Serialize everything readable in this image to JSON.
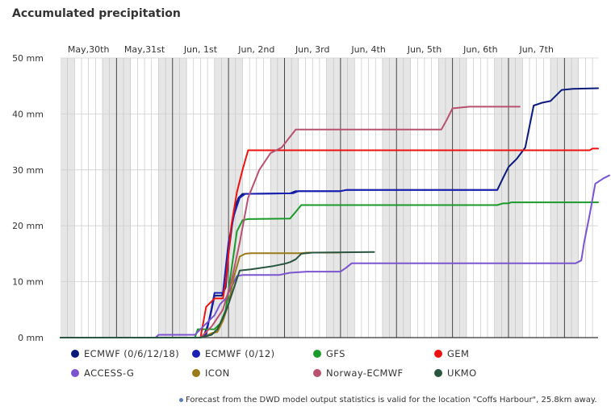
{
  "chart_data": {
    "type": "line",
    "title": "Accumulated precipitation",
    "ylabel": "",
    "xlabel": "",
    "y_unit": "mm",
    "ylim": [
      0,
      50
    ],
    "y_ticks": [
      0,
      10,
      20,
      30,
      40,
      50
    ],
    "y_tick_labels": [
      "0 mm",
      "10 mm",
      "20 mm",
      "30 mm",
      "40 mm",
      "50 mm"
    ],
    "x_unit": "days since May 29 00:00",
    "xlim": [
      0,
      9.6
    ],
    "day_labels": [
      {
        "t": 1,
        "label": "May,30th"
      },
      {
        "t": 2,
        "label": "May,31st"
      },
      {
        "t": 3,
        "label": "Jun, 1st"
      },
      {
        "t": 4,
        "label": "Jun, 2nd"
      },
      {
        "t": 5,
        "label": "Jun, 3rd"
      },
      {
        "t": 6,
        "label": "Jun, 4th"
      },
      {
        "t": 7,
        "label": "Jun, 5th"
      },
      {
        "t": 8,
        "label": "Jun, 6th"
      },
      {
        "t": 9,
        "label": "Jun, 7th"
      }
    ],
    "grid": true,
    "legend_placement": "bottom",
    "series": [
      {
        "name": "ECMWF (0/6/12/18)",
        "color": "#0a1a7a",
        "points": [
          [
            0,
            0
          ],
          [
            2.5,
            0
          ],
          [
            2.55,
            0.1
          ],
          [
            2.62,
            2
          ],
          [
            2.68,
            4
          ],
          [
            2.75,
            7.5
          ],
          [
            2.88,
            7.5
          ],
          [
            2.95,
            9
          ],
          [
            3.0,
            15
          ],
          [
            3.05,
            19
          ],
          [
            3.1,
            23
          ],
          [
            3.18,
            25
          ],
          [
            3.25,
            25.7
          ],
          [
            4.1,
            25.8
          ],
          [
            4.2,
            26.2
          ],
          [
            5.0,
            26.2
          ],
          [
            5.1,
            26.4
          ],
          [
            7.8,
            26.4
          ],
          [
            7.9,
            28.5
          ],
          [
            8.0,
            30.5
          ],
          [
            8.15,
            32
          ],
          [
            8.3,
            34
          ],
          [
            8.45,
            41.5
          ],
          [
            8.6,
            42
          ],
          [
            8.75,
            42.3
          ],
          [
            8.95,
            44.3
          ],
          [
            9.15,
            44.5
          ],
          [
            9.6,
            44.6
          ]
        ]
      },
      {
        "name": "ECMWF (0/12)",
        "color": "#1a21b0",
        "points": [
          [
            0,
            0
          ],
          [
            2.5,
            0
          ],
          [
            2.6,
            0.5
          ],
          [
            2.75,
            8
          ],
          [
            2.9,
            8
          ],
          [
            3.0,
            17
          ],
          [
            3.1,
            22
          ],
          [
            3.2,
            25
          ],
          [
            3.3,
            25.7
          ],
          [
            4.15,
            25.8
          ],
          [
            4.25,
            26.2
          ],
          [
            5.0,
            26.2
          ],
          [
            5.1,
            26.4
          ],
          [
            7.8,
            26.4
          ]
        ]
      },
      {
        "name": "GFS",
        "color": "#1a9a2a",
        "points": [
          [
            0,
            0
          ],
          [
            2.4,
            0
          ],
          [
            2.45,
            1.5
          ],
          [
            2.75,
            1.5
          ],
          [
            2.85,
            2.5
          ],
          [
            2.95,
            5
          ],
          [
            3.05,
            12
          ],
          [
            3.15,
            19
          ],
          [
            3.25,
            21
          ],
          [
            3.35,
            21.2
          ],
          [
            4.1,
            21.3
          ],
          [
            4.2,
            22.5
          ],
          [
            4.3,
            23.7
          ],
          [
            7.8,
            23.7
          ],
          [
            7.9,
            24
          ],
          [
            8.0,
            24
          ],
          [
            8.05,
            24.2
          ],
          [
            9.6,
            24.2
          ]
        ]
      },
      {
        "name": "GEM",
        "color": "#ee1111",
        "points": [
          [
            0,
            0
          ],
          [
            2.5,
            0
          ],
          [
            2.6,
            5.5
          ],
          [
            2.75,
            7
          ],
          [
            2.9,
            7
          ],
          [
            2.95,
            10
          ],
          [
            3.05,
            20
          ],
          [
            3.15,
            26
          ],
          [
            3.25,
            30
          ],
          [
            3.35,
            33.5
          ],
          [
            9.45,
            33.5
          ],
          [
            9.5,
            33.8
          ],
          [
            9.6,
            33.8
          ]
        ]
      },
      {
        "name": "ACCESS-G",
        "color": "#7b55d0",
        "points": [
          [
            0,
            0
          ],
          [
            1.7,
            0
          ],
          [
            1.75,
            0.5
          ],
          [
            2.4,
            0.5
          ],
          [
            2.5,
            1.5
          ],
          [
            2.75,
            4
          ],
          [
            2.85,
            6
          ],
          [
            2.95,
            7
          ],
          [
            3.05,
            9
          ],
          [
            3.15,
            11
          ],
          [
            3.25,
            11.2
          ],
          [
            3.9,
            11.2
          ],
          [
            4.0,
            11.4
          ],
          [
            4.1,
            11.6
          ],
          [
            4.4,
            11.8
          ],
          [
            5.0,
            11.8
          ],
          [
            5.1,
            12.5
          ],
          [
            5.2,
            13.3
          ],
          [
            9.2,
            13.3
          ],
          [
            9.3,
            13.8
          ],
          [
            9.35,
            17
          ],
          [
            9.45,
            22
          ],
          [
            9.55,
            27.5
          ],
          [
            9.7,
            28.5
          ],
          [
            9.8,
            29
          ]
        ]
      },
      {
        "name": "ICON",
        "color": "#9a7a18",
        "points": [
          [
            0,
            0
          ],
          [
            2.5,
            0
          ],
          [
            2.6,
            0.3
          ],
          [
            2.7,
            0.8
          ],
          [
            2.8,
            1
          ],
          [
            2.9,
            3
          ],
          [
            3.0,
            6
          ],
          [
            3.1,
            11
          ],
          [
            3.2,
            14.5
          ],
          [
            3.3,
            15
          ],
          [
            3.4,
            15.1
          ],
          [
            4.3,
            15.1
          ],
          [
            4.4,
            15.2
          ],
          [
            5.0,
            15.2
          ]
        ]
      },
      {
        "name": "Norway-ECMWF",
        "color": "#b85070",
        "points": [
          [
            0,
            0
          ],
          [
            2.5,
            0
          ],
          [
            2.7,
            2
          ],
          [
            2.9,
            5
          ],
          [
            3.05,
            10
          ],
          [
            3.2,
            17
          ],
          [
            3.35,
            25
          ],
          [
            3.55,
            30
          ],
          [
            3.75,
            33
          ],
          [
            3.95,
            34
          ],
          [
            4.2,
            37.2
          ],
          [
            6.8,
            37.2
          ],
          [
            6.9,
            39
          ],
          [
            7.0,
            41
          ],
          [
            7.3,
            41.3
          ],
          [
            8.2,
            41.3
          ]
        ]
      },
      {
        "name": "UKMO",
        "color": "#2a5540",
        "points": [
          [
            0,
            0
          ],
          [
            2.5,
            0
          ],
          [
            2.7,
            0.5
          ],
          [
            2.8,
            1.5
          ],
          [
            2.9,
            3.5
          ],
          [
            3.0,
            6
          ],
          [
            3.1,
            9
          ],
          [
            3.2,
            12
          ],
          [
            3.4,
            12.2
          ],
          [
            3.6,
            12.5
          ],
          [
            3.8,
            12.8
          ],
          [
            4.0,
            13.2
          ],
          [
            4.1,
            13.5
          ],
          [
            4.2,
            14
          ],
          [
            4.3,
            15
          ],
          [
            4.5,
            15.2
          ],
          [
            5.6,
            15.3
          ]
        ]
      }
    ]
  },
  "footnote": "Forecast from the DWD model output statistics is valid for the location \"Coffs Harbour\", 25.8km away."
}
